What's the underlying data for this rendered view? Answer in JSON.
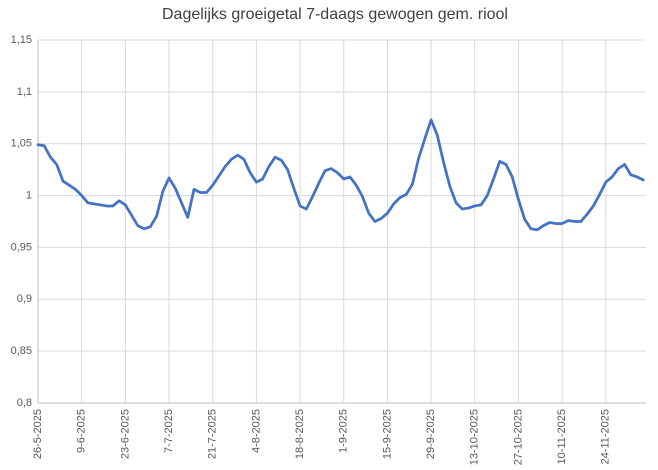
{
  "chart_data": {
    "type": "line",
    "title": "Dagelijks groeigetal 7-daags gewogen gem. riool",
    "categories": [
      "26-5-2025",
      null,
      null,
      null,
      null,
      null,
      null,
      "9-6-2025",
      null,
      null,
      null,
      null,
      null,
      null,
      "23-6-2025",
      null,
      null,
      null,
      null,
      null,
      null,
      "7-7-2025",
      null,
      null,
      null,
      null,
      null,
      null,
      "21-7-2025",
      null,
      null,
      null,
      null,
      null,
      null,
      "4-8-2025",
      null,
      null,
      null,
      null,
      null,
      null,
      "18-8-2025",
      null,
      null,
      null,
      null,
      null,
      null,
      "1-9-2025",
      null,
      null,
      null,
      null,
      null,
      null,
      "15-9-2025",
      null,
      null,
      null,
      null,
      null,
      null,
      "29-9-2025",
      null,
      null,
      null,
      null,
      null,
      null,
      "13-10-2025",
      null,
      null,
      null,
      null,
      null,
      null,
      "27-10-2025",
      null,
      null,
      null,
      null,
      null,
      null,
      "10-11-2025",
      null,
      null,
      null,
      null,
      null,
      null,
      "24-11-2025",
      null,
      null,
      null,
      null,
      null,
      null
    ],
    "values": [
      1.049,
      1.048,
      1.037,
      1.03,
      1.014,
      1.01,
      1.006,
      1.0,
      0.993,
      0.992,
      0.991,
      0.99,
      0.99,
      0.995,
      0.991,
      0.981,
      0.971,
      0.968,
      0.97,
      0.98,
      1.004,
      1.017,
      1.007,
      0.993,
      0.979,
      1.006,
      1.003,
      1.003,
      1.01,
      1.019,
      1.028,
      1.035,
      1.039,
      1.035,
      1.022,
      1.013,
      1.016,
      1.028,
      1.037,
      1.034,
      1.025,
      1.007,
      0.99,
      0.987,
      0.999,
      1.012,
      1.024,
      1.026,
      1.022,
      1.016,
      1.018,
      1.01,
      0.999,
      0.983,
      0.975,
      0.978,
      0.983,
      0.992,
      0.998,
      1.001,
      1.011,
      1.036,
      1.055,
      1.073,
      1.058,
      1.032,
      1.009,
      0.993,
      0.987,
      0.988,
      0.99,
      0.991,
      1.0,
      1.016,
      1.033,
      1.03,
      1.018,
      0.996,
      0.977,
      0.968,
      0.967,
      0.971,
      0.974,
      0.973,
      0.973,
      0.976,
      0.975,
      0.975,
      0.982,
      0.99,
      1.001,
      1.013,
      1.018,
      1.026,
      1.03,
      1.02,
      1.018,
      1.015
    ],
    "color": "#4472c4",
    "ylim": [
      0.8,
      1.15
    ],
    "yticks": [
      {
        "value": 0.8,
        "label": "0,8"
      },
      {
        "value": 0.85,
        "label": "0,85"
      },
      {
        "value": 0.9,
        "label": "0,9"
      },
      {
        "value": 0.95,
        "label": "0,95"
      },
      1,
      {
        "value": 1.05,
        "label": "1,05"
      },
      {
        "value": 1.1,
        "label": "1,1"
      },
      {
        "value": 1.15,
        "label": "1,15"
      }
    ],
    "grid": true
  }
}
